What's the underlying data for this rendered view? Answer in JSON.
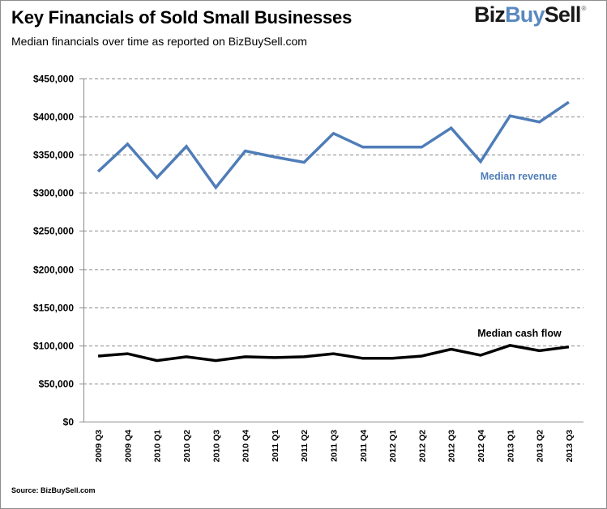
{
  "header": {
    "title": "Key Financials of Sold Small Businesses",
    "subtitle": "Median financials over time as reported  on  BizBuySell.com"
  },
  "logo": {
    "part_a": "Biz",
    "part_b": "Buy",
    "part_c": "Sell",
    "registered_mark": "®",
    "colors": {
      "dark": "#1a1a1a",
      "accent": "#5a88c0"
    }
  },
  "footer": {
    "source": "Source: BizBuySell.com"
  },
  "chart_data": {
    "type": "line",
    "title": "Key Financials of Sold Small Businesses",
    "subtitle": "Median financials over time as reported on BizBuySell.com",
    "xlabel": "",
    "ylabel": "",
    "ylim": [
      0,
      450000
    ],
    "y_ticks": [
      0,
      50000,
      100000,
      150000,
      200000,
      250000,
      300000,
      350000,
      400000,
      450000
    ],
    "y_tick_labels": [
      "$0",
      "$50,000",
      "$100,000",
      "$150,000",
      "$200,000",
      "$250,000",
      "$300,000",
      "$350,000",
      "$400,000",
      "$450,000"
    ],
    "grid": "horizontal dashed",
    "legend": "inline labels",
    "categories": [
      "2009 Q3",
      "2009 Q4",
      "2010 Q1",
      "2010 Q2",
      "2010 Q3",
      "2010 Q4",
      "2011 Q1",
      "2011 Q2",
      "2011 Q3",
      "2011 Q4",
      "2012 Q1",
      "2012 Q2",
      "2012 Q3",
      "2012 Q4",
      "2013 Q1",
      "2013 Q2",
      "2013 Q3"
    ],
    "series": [
      {
        "name": "Median revenue",
        "color": "#4f7db8",
        "values": [
          328000,
          364000,
          320000,
          361000,
          307000,
          355000,
          347000,
          340000,
          378000,
          360000,
          360000,
          360000,
          385000,
          341000,
          401000,
          393000,
          419000
        ]
      },
      {
        "name": "Median cash flow",
        "color": "#000000",
        "values": [
          86000,
          89000,
          80000,
          85000,
          80000,
          85000,
          84000,
          85000,
          89000,
          83000,
          83000,
          86000,
          95000,
          87000,
          100000,
          93000,
          98000
        ]
      }
    ],
    "source": "Source: BizBuySell.com"
  }
}
